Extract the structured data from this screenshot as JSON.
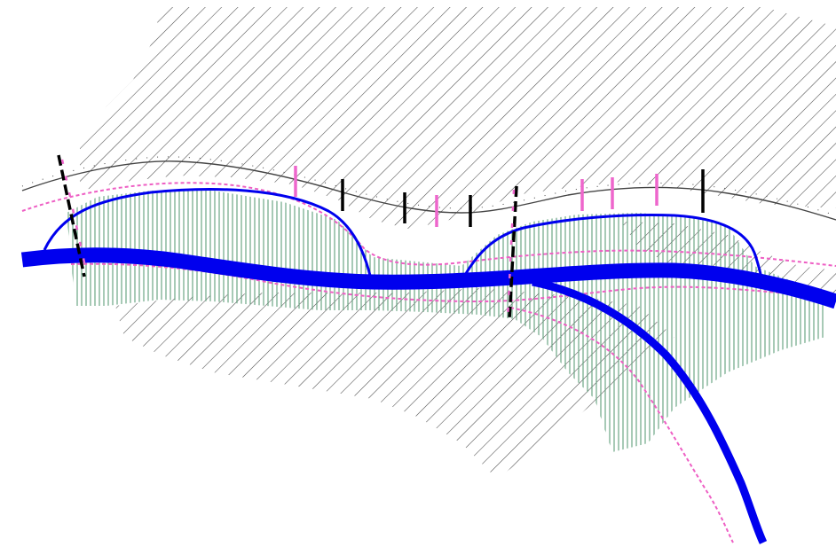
{
  "map": {
    "colors": {
      "background": "#ffffff",
      "hatch": "#4a4a4a",
      "wetland_hatch": "#5e9f7a",
      "river": "#0000ee",
      "buffer_dash": "#ee5fc4",
      "railway": "#444444",
      "marker_black": "#000000",
      "marker_pink": "#ee66cc"
    },
    "layers": [
      {
        "id": "urban-area-hatch",
        "kind": "diagonal hatch"
      },
      {
        "id": "wetland-hatch",
        "kind": "vertical hatch"
      },
      {
        "id": "main-river",
        "kind": "thick line"
      },
      {
        "id": "tributary-river",
        "kind": "thick line"
      },
      {
        "id": "oxbow-arcs",
        "kind": "thin line"
      },
      {
        "id": "flood-buffer",
        "kind": "dotted line"
      },
      {
        "id": "railway",
        "kind": "ticked line"
      },
      {
        "id": "section-markers",
        "kind": "short bars"
      },
      {
        "id": "cross-section-lines",
        "kind": "dashed lines"
      }
    ]
  }
}
